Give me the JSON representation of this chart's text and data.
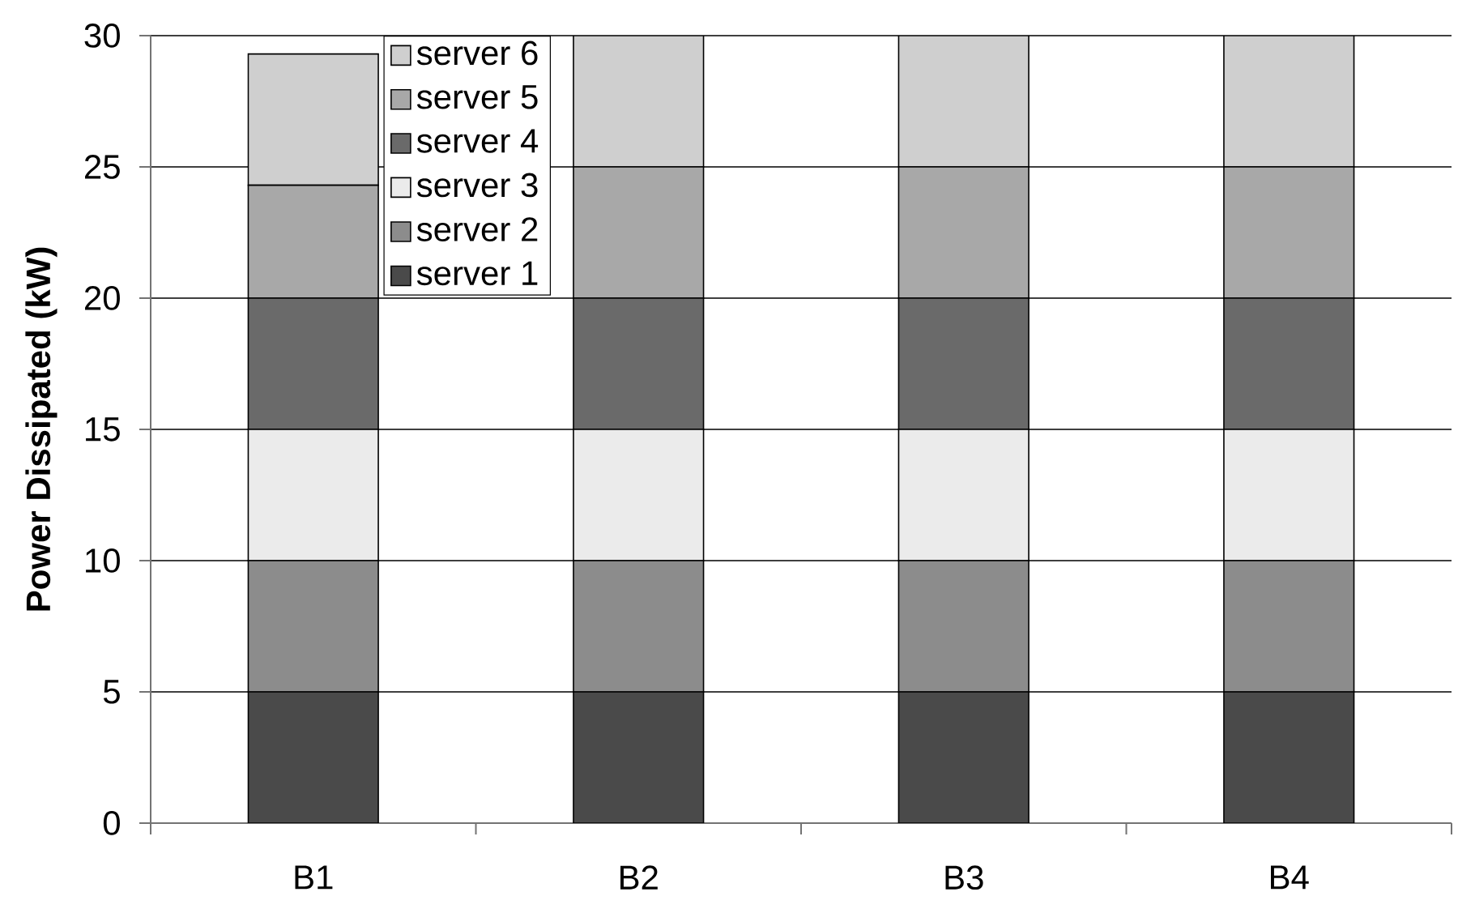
{
  "chart_data": {
    "type": "bar",
    "stacked": true,
    "ylabel": "Power Dissipated (kW)",
    "categories": [
      "B1",
      "B2",
      "B3",
      "B4"
    ],
    "series": [
      {
        "name": "server 1",
        "color": "#4a4a4a",
        "values": [
          5,
          5,
          5,
          5
        ]
      },
      {
        "name": "server 2",
        "color": "#8c8c8c",
        "values": [
          5,
          5,
          5,
          5
        ]
      },
      {
        "name": "server 3",
        "color": "#ebebeb",
        "values": [
          5,
          5,
          5,
          5
        ]
      },
      {
        "name": "server 4",
        "color": "#6a6a6a",
        "values": [
          5,
          5,
          5,
          5
        ]
      },
      {
        "name": "server 5",
        "color": "#a8a8a8",
        "values": [
          4.3,
          5,
          5,
          5
        ]
      },
      {
        "name": "server 6",
        "color": "#cfcfcf",
        "values": [
          5,
          5,
          5,
          5
        ]
      }
    ],
    "ylim": [
      0,
      30
    ],
    "yticks": [
      0,
      5,
      10,
      15,
      20,
      25,
      30
    ],
    "grid": "y",
    "legend": "top left"
  }
}
